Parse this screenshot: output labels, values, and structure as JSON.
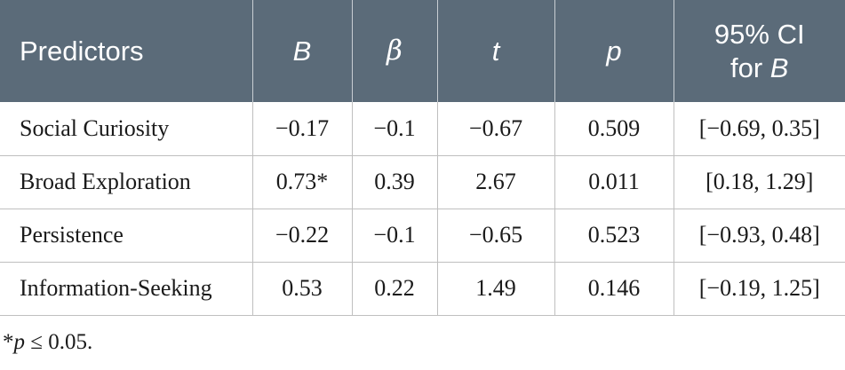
{
  "table": {
    "headers": {
      "predictors": "Predictors",
      "b": "B",
      "beta": "β",
      "t": "t",
      "p": "p",
      "ci_line1": "95% CI",
      "ci_line2_prefix": "for ",
      "ci_line2_var": "B"
    },
    "rows": [
      {
        "predictor": "Social Curiosity",
        "b": "−0.17",
        "beta": "−0.1",
        "t": "−0.67",
        "p": "0.509",
        "ci": "[−0.69, 0.35]"
      },
      {
        "predictor": "Broad Exploration",
        "b": "0.73*",
        "beta": "0.39",
        "t": "2.67",
        "p": "0.011",
        "ci": "[0.18, 1.29]"
      },
      {
        "predictor": "Persistence",
        "b": "−0.22",
        "beta": "−0.1",
        "t": "−0.65",
        "p": "0.523",
        "ci": "[−0.93, 0.48]"
      },
      {
        "predictor": "Information-Seeking",
        "b": "0.53",
        "beta": "0.22",
        "t": "1.49",
        "p": "0.146",
        "ci": "[−0.19, 1.25]"
      }
    ]
  },
  "footnote": {
    "star": "*",
    "p": "p",
    "rest": " ≤ 0.05."
  },
  "colors": {
    "header_bg": "#5b6b79",
    "header_text": "#ffffff",
    "grid": "#bfbfbf"
  }
}
